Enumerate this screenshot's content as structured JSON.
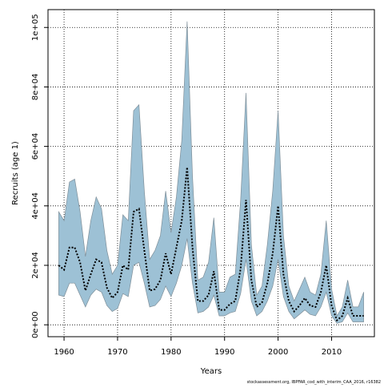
{
  "chart_data": {
    "type": "area",
    "xlabel": "Years",
    "ylabel": "Recruits (age 1)",
    "xlim": [
      1957,
      2018
    ],
    "ylim": [
      -4000,
      106000
    ],
    "x_ticks": [
      {
        "value": 1960,
        "label": "1960"
      },
      {
        "value": 1970,
        "label": "1970"
      },
      {
        "value": 1980,
        "label": "1980"
      },
      {
        "value": 1990,
        "label": "1990"
      },
      {
        "value": 2000,
        "label": "2000"
      },
      {
        "value": 2010,
        "label": "2010"
      }
    ],
    "y_ticks": [
      {
        "value": 0,
        "label": "0e+00"
      },
      {
        "value": 20000,
        "label": "2e+04"
      },
      {
        "value": 40000,
        "label": "4e+04"
      },
      {
        "value": 60000,
        "label": "6e+04"
      },
      {
        "value": 80000,
        "label": "8e+04"
      },
      {
        "value": 100000,
        "label": "1e+05"
      }
    ],
    "grid": true,
    "footnote": "stockassessment.org, IBPFAR_cod_with_interim_CAA_2016, r16382",
    "band_color": "#9dc1d5",
    "band_stroke": "#7f8f99",
    "line_color": "#000000",
    "x": [
      1959,
      1960,
      1961,
      1962,
      1963,
      1964,
      1965,
      1966,
      1967,
      1968,
      1969,
      1970,
      1971,
      1972,
      1973,
      1974,
      1975,
      1976,
      1977,
      1978,
      1979,
      1980,
      1981,
      1982,
      1983,
      1984,
      1985,
      1986,
      1987,
      1988,
      1989,
      1990,
      1991,
      1992,
      1993,
      1994,
      1995,
      1996,
      1997,
      1998,
      1999,
      2000,
      2001,
      2002,
      2003,
      2004,
      2005,
      2006,
      2007,
      2008,
      2009,
      2010,
      2011,
      2012,
      2013,
      2014,
      2015,
      2016
    ],
    "upper": [
      38000,
      35000,
      48000,
      49000,
      38000,
      23000,
      35000,
      43000,
      39000,
      25000,
      17000,
      20000,
      37000,
      35000,
      72000,
      74000,
      45000,
      22000,
      25000,
      30000,
      45000,
      31000,
      43000,
      62000,
      102000,
      50000,
      15000,
      16000,
      21000,
      36000,
      11000,
      11000,
      16000,
      17000,
      42000,
      78000,
      27000,
      10000,
      13000,
      27000,
      45000,
      72000,
      30000,
      13000,
      8000,
      12000,
      16000,
      11000,
      10000,
      17000,
      35000,
      12000,
      3000,
      6000,
      15000,
      6000,
      6000,
      11000
    ],
    "estimate": [
      20000,
      18500,
      26000,
      26000,
      21000,
      11500,
      17000,
      22000,
      21000,
      12500,
      9000,
      11000,
      20000,
      18500,
      38000,
      39000,
      25000,
      11500,
      12000,
      15000,
      24000,
      17000,
      26000,
      35000,
      53000,
      26000,
      8000,
      8000,
      10000,
      18000,
      5000,
      5000,
      7000,
      8000,
      19000,
      42000,
      15000,
      6000,
      7500,
      14000,
      24000,
      40000,
      17000,
      8000,
      4500,
      6500,
      9000,
      6500,
      6000,
      11000,
      20000,
      6500,
      1500,
      3000,
      9000,
      3000,
      3000,
      3000
    ],
    "lower": [
      10000,
      9500,
      14000,
      14000,
      10000,
      6000,
      10000,
      12000,
      11000,
      6500,
      4500,
      5500,
      10500,
      9500,
      20000,
      21000,
      14000,
      6000,
      6500,
      8500,
      13000,
      9500,
      14000,
      20000,
      29000,
      14000,
      4000,
      4500,
      6000,
      10000,
      3000,
      3000,
      4000,
      4500,
      10500,
      22000,
      8000,
      3000,
      4500,
      8000,
      13000,
      22000,
      9500,
      4500,
      2000,
      3500,
      5000,
      3500,
      3000,
      6000,
      11000,
      3000,
      500,
      1000,
      4000,
      1000,
      1000,
      1000
    ]
  }
}
